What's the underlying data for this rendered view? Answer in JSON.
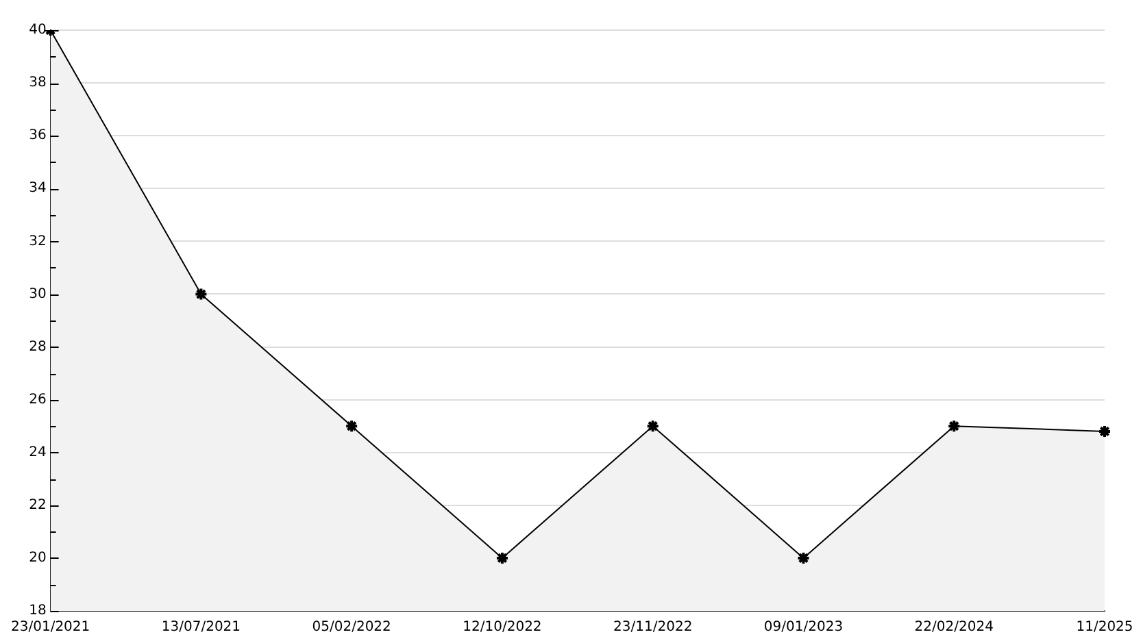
{
  "chart_data": {
    "type": "area",
    "categories": [
      "23/01/2021",
      "13/07/2021",
      "05/02/2022",
      "12/10/2022",
      "23/11/2022",
      "09/01/2023",
      "22/02/2024",
      "11/2025"
    ],
    "series": [
      {
        "color": "#000000",
        "values": [
          40,
          30,
          25,
          20,
          25,
          20,
          25,
          24.8
        ]
      }
    ],
    "ylim": [
      18,
      40
    ],
    "yticks": [
      18,
      {
        "value": 19,
        "label": null
      },
      20,
      {
        "value": 21,
        "label": null
      },
      22,
      {
        "value": 23,
        "label": null
      },
      24,
      {
        "value": 25,
        "label": null
      },
      26,
      {
        "value": 27,
        "label": null
      },
      28,
      {
        "value": 29,
        "label": null
      },
      30,
      {
        "value": 31,
        "label": null
      },
      32,
      {
        "value": 33,
        "label": null
      },
      34,
      {
        "value": 35,
        "label": null
      },
      36,
      {
        "value": 37,
        "label": null
      },
      38,
      {
        "value": 39,
        "label": null
      },
      40
    ],
    "grid": "y",
    "legend": false,
    "marker": "cross",
    "line_style": "solid"
  }
}
